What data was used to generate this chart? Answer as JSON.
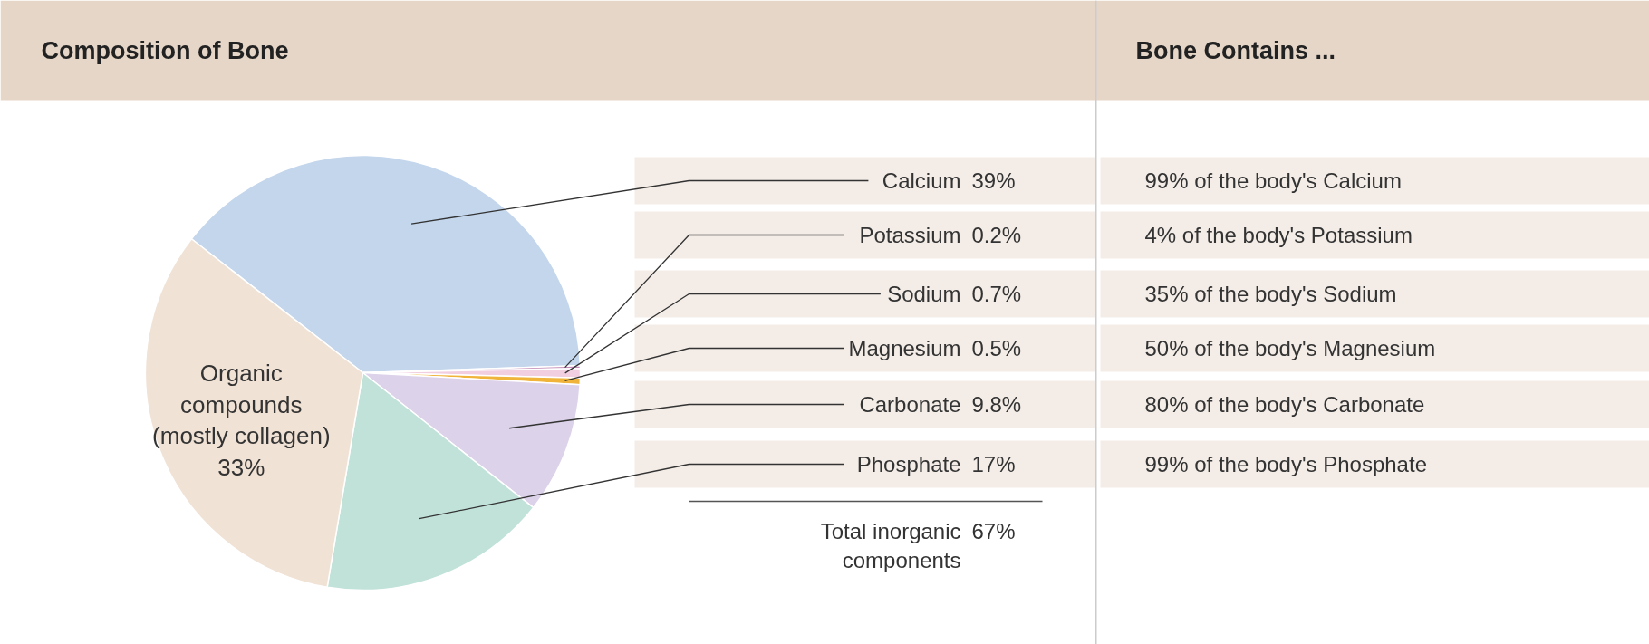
{
  "chart_data": [
    {
      "type": "pie",
      "title": "Composition of Bone",
      "categories": [
        "Calcium",
        "Potassium",
        "Sodium",
        "Magnesium",
        "Carbonate",
        "Phosphate",
        "Organic\ncompounds\n(mostly collagen)"
      ],
      "values": [
        39,
        0.2,
        0.7,
        0.5,
        9.8,
        17,
        33
      ],
      "value_labels": [
        "39%",
        "0.2%",
        "0.7%",
        "0.5%",
        "9.8%",
        "17%",
        "33%"
      ],
      "colors": [
        "#c3d6ec",
        "#c38ab6",
        "#f2cfe0",
        "#f0b43a",
        "#dcd2ea",
        "#c1e2d9",
        "#f1e2d6"
      ],
      "annotations": [
        "Total inorganic\ncomponents",
        "67%"
      ]
    },
    {
      "type": "other",
      "title": "Bone Contains ...",
      "annotations": [
        "99% of the body's Calcium",
        "4% of the body's Potassium",
        "35% of the body's Sodium",
        "50% of the body's Magnesium",
        "80% of the body's Carbonate",
        "99% of the body's Phosphate"
      ]
    }
  ]
}
